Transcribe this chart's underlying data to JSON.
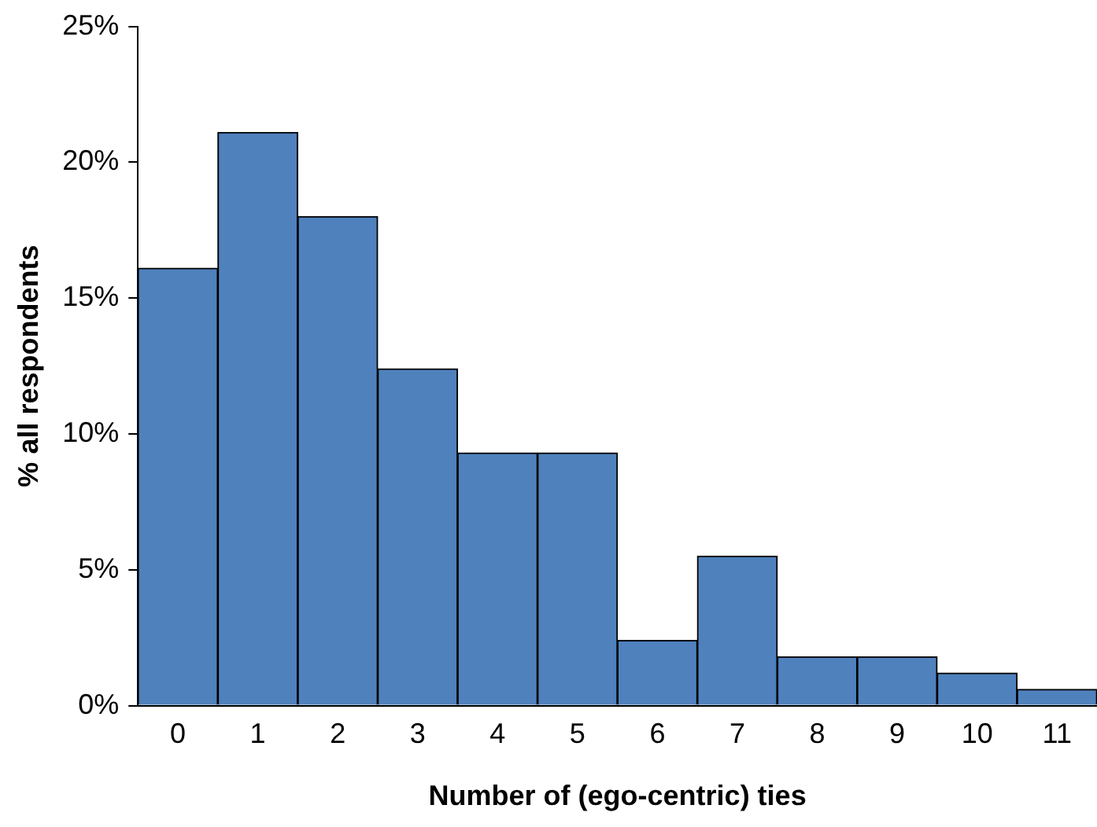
{
  "chart_data": {
    "type": "bar",
    "xlabel": "Number of (ego-centric) ties",
    "ylabel": "% all respondents",
    "categories": [
      "0",
      "1",
      "2",
      "3",
      "4",
      "5",
      "6",
      "7",
      "8",
      "9",
      "10",
      "11"
    ],
    "values": [
      16.1,
      21.1,
      18.0,
      12.4,
      9.3,
      9.3,
      2.4,
      5.5,
      1.8,
      1.8,
      1.2,
      0.6
    ],
    "color": "#4f81bd",
    "ylim": [
      0,
      25
    ],
    "yticks": [
      {
        "value": 0,
        "label": "0%"
      },
      {
        "value": 5,
        "label": "5%"
      },
      {
        "value": 10,
        "label": "10%"
      },
      {
        "value": 15,
        "label": "15%"
      },
      {
        "value": 20,
        "label": "20%"
      },
      {
        "value": 25,
        "label": "25%"
      }
    ],
    "grid": false,
    "legend": false
  }
}
